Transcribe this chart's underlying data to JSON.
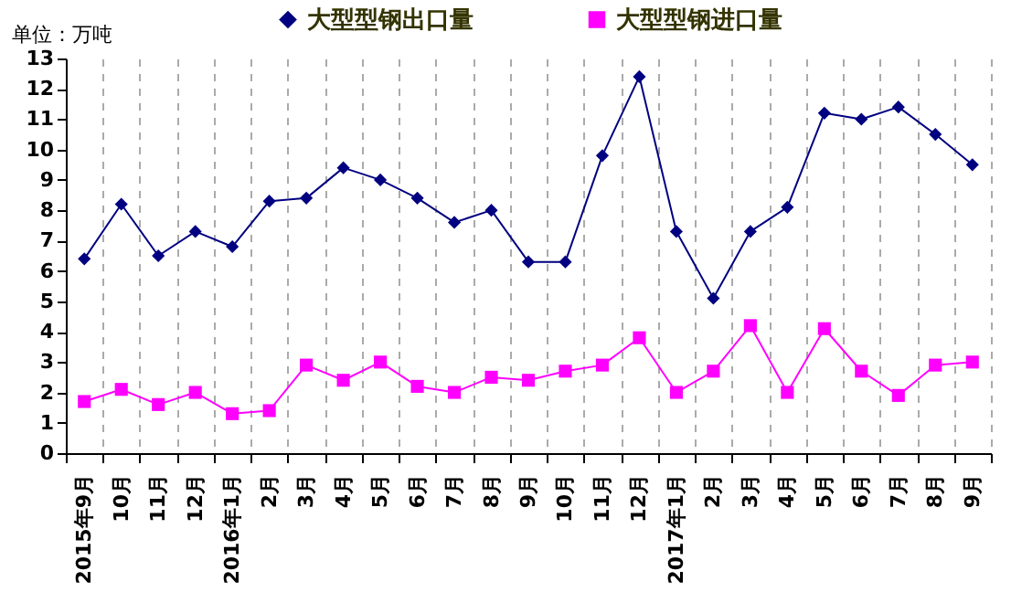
{
  "chart_data": {
    "type": "line",
    "ylabel": "单位：万吨",
    "categories": [
      "2015年9月",
      "10月",
      "11月",
      "12月",
      "2016年1月",
      "2月",
      "3月",
      "4月",
      "5月",
      "6月",
      "7月",
      "8月",
      "9月",
      "10月",
      "11月",
      "12月",
      "2017年1月",
      "2月",
      "3月",
      "4月",
      "5月",
      "6月",
      "7月",
      "8月",
      "9月"
    ],
    "series": [
      {
        "name": "大型型钢出口量",
        "color": "#000080",
        "marker": "diamond",
        "values": [
          6.4,
          8.2,
          6.5,
          7.3,
          6.8,
          8.3,
          8.4,
          9.4,
          9.0,
          8.4,
          7.6,
          8.0,
          6.3,
          6.3,
          9.8,
          12.4,
          7.3,
          5.1,
          7.3,
          8.1,
          11.2,
          11.0,
          11.4,
          10.5,
          9.5
        ]
      },
      {
        "name": "大型型钢进口量",
        "color": "#ff00ff",
        "marker": "square",
        "values": [
          1.7,
          2.1,
          1.6,
          2.0,
          1.3,
          1.4,
          2.9,
          2.4,
          3.0,
          2.2,
          2.0,
          2.5,
          2.4,
          2.7,
          2.9,
          3.8,
          2.0,
          2.7,
          4.2,
          2.0,
          4.1,
          2.7,
          1.9,
          2.9,
          3.0
        ]
      }
    ],
    "ylim": [
      0,
      13
    ],
    "yticks": [
      0,
      1,
      2,
      3,
      4,
      5,
      6,
      7,
      8,
      9,
      10,
      11,
      12,
      13
    ],
    "grid": "x",
    "legend": "top",
    "line_style": "solid"
  }
}
